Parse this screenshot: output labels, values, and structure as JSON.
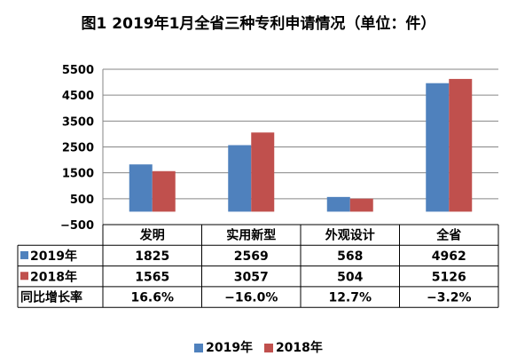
{
  "chart_data": {
    "type": "bar",
    "title": "图1  2019年1月全省三种专利申请情况（单位：件）",
    "categories": [
      "发明",
      "实用新型",
      "外观设计",
      "全省"
    ],
    "series": [
      {
        "name": "2019年",
        "color": "#4F81BD",
        "values": [
          1825,
          2569,
          568,
          4962
        ]
      },
      {
        "name": "2018年",
        "color": "#C0504D",
        "values": [
          1565,
          3057,
          504,
          5126
        ]
      }
    ],
    "yticks": [
      "5500",
      "4500",
      "3500",
      "2500",
      "1500",
      "500",
      "−500"
    ],
    "ylim": [
      -500,
      5500
    ],
    "grid": true,
    "legend_position": "bottom",
    "table": {
      "rows": [
        {
          "label": "2019年",
          "cells": [
            "1825",
            "2569",
            "568",
            "4962"
          ]
        },
        {
          "label": "2018年",
          "cells": [
            "1565",
            "3057",
            "504",
            "5126"
          ]
        },
        {
          "label": "同比增长率",
          "cells": [
            "16.6%",
            "−16.0%",
            "12.7%",
            "−3.2%"
          ]
        }
      ]
    }
  }
}
